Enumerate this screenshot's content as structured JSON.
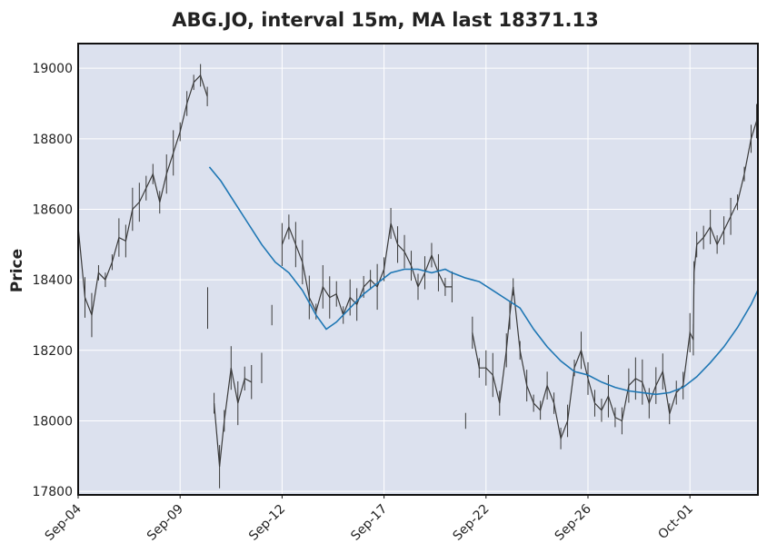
{
  "chart_data": {
    "type": "line",
    "title": "ABG.JO, interval 15m, MA last 18371.13",
    "xlabel": "",
    "ylabel": "Price",
    "ylim": [
      17790,
      19070
    ],
    "yticks": [
      17800,
      18000,
      18200,
      18400,
      18600,
      18800,
      19000
    ],
    "xlim": [
      0,
      100
    ],
    "xticks": [
      {
        "label": "Sep-04",
        "pos": 0
      },
      {
        "label": "Sep-09",
        "pos": 15
      },
      {
        "label": "Sep-12",
        "pos": 30
      },
      {
        "label": "Sep-17",
        "pos": 45
      },
      {
        "label": "Sep-22",
        "pos": 60
      },
      {
        "label": "Sep-26",
        "pos": 75
      },
      {
        "label": "Oct-01",
        "pos": 90
      }
    ],
    "grid": true,
    "background": "#dce1ee",
    "colors": {
      "price": "#3a3a3a",
      "ma": "#1f77b4"
    },
    "series": [
      {
        "name": "",
        "role": "price",
        "points": [
          [
            0,
            18550
          ],
          [
            1,
            18350
          ],
          [
            2,
            18300
          ],
          [
            3,
            18420
          ],
          [
            4,
            18400
          ],
          [
            5,
            18450
          ],
          [
            6,
            18520
          ],
          [
            7,
            18510
          ],
          [
            8,
            18600
          ],
          [
            9,
            18620
          ],
          [
            10,
            18660
          ],
          [
            11,
            18700
          ],
          [
            12,
            18620
          ],
          [
            13,
            18700
          ],
          [
            14,
            18760
          ],
          [
            15,
            18820
          ],
          [
            16,
            18900
          ],
          [
            17,
            18960
          ],
          [
            18,
            18980
          ],
          [
            19,
            18920
          ],
          [
            19.05,
            18320
          ],
          [
            20,
            18050
          ],
          [
            20.8,
            17870
          ],
          [
            21.5,
            18000
          ],
          [
            22.5,
            18150
          ],
          [
            23.5,
            18050
          ],
          [
            24.5,
            18120
          ],
          [
            25.5,
            18110
          ],
          [
            27,
            18150
          ],
          [
            28.5,
            18300
          ],
          [
            30,
            18500
          ],
          [
            31,
            18550
          ],
          [
            32,
            18500
          ],
          [
            33,
            18450
          ],
          [
            34,
            18350
          ],
          [
            35,
            18310
          ],
          [
            36,
            18380
          ],
          [
            37,
            18350
          ],
          [
            38,
            18360
          ],
          [
            39,
            18300
          ],
          [
            40,
            18350
          ],
          [
            41,
            18330
          ],
          [
            42,
            18380
          ],
          [
            43,
            18400
          ],
          [
            44,
            18380
          ],
          [
            45,
            18430
          ],
          [
            46,
            18560
          ],
          [
            47,
            18500
          ],
          [
            48,
            18480
          ],
          [
            49,
            18440
          ],
          [
            50,
            18380
          ],
          [
            51,
            18420
          ],
          [
            52,
            18470
          ],
          [
            53,
            18420
          ],
          [
            54,
            18380
          ],
          [
            55,
            18380
          ],
          [
            57,
            18000
          ],
          [
            58,
            18250
          ],
          [
            59,
            18150
          ],
          [
            60,
            18150
          ],
          [
            61,
            18130
          ],
          [
            62,
            18050
          ],
          [
            63,
            18200
          ],
          [
            63.5,
            18300
          ],
          [
            64,
            18380
          ],
          [
            65,
            18200
          ],
          [
            66,
            18100
          ],
          [
            67,
            18050
          ],
          [
            68,
            18030
          ],
          [
            69,
            18100
          ],
          [
            70,
            18050
          ],
          [
            71,
            17950
          ],
          [
            72,
            18000
          ],
          [
            73,
            18150
          ],
          [
            74,
            18200
          ],
          [
            75,
            18120
          ],
          [
            76,
            18050
          ],
          [
            77,
            18030
          ],
          [
            78,
            18070
          ],
          [
            79,
            18010
          ],
          [
            80,
            18000
          ],
          [
            81,
            18100
          ],
          [
            82,
            18120
          ],
          [
            83,
            18110
          ],
          [
            84,
            18050
          ],
          [
            85,
            18100
          ],
          [
            86,
            18140
          ],
          [
            87,
            18020
          ],
          [
            88,
            18080
          ],
          [
            89,
            18100
          ],
          [
            90,
            18250
          ],
          [
            90.5,
            18230
          ],
          [
            90.6,
            18420
          ],
          [
            91,
            18500
          ],
          [
            92,
            18520
          ],
          [
            93,
            18550
          ],
          [
            94,
            18500
          ],
          [
            95,
            18540
          ],
          [
            96,
            18580
          ],
          [
            97,
            18620
          ],
          [
            98,
            18700
          ],
          [
            99,
            18800
          ],
          [
            99.8,
            18850
          ]
        ]
      },
      {
        "name": "",
        "role": "ma",
        "points": [
          [
            19.3,
            18720
          ],
          [
            21,
            18680
          ],
          [
            23,
            18620
          ],
          [
            25,
            18560
          ],
          [
            27,
            18500
          ],
          [
            29,
            18450
          ],
          [
            31,
            18420
          ],
          [
            33,
            18370
          ],
          [
            35,
            18300
          ],
          [
            36.5,
            18260
          ],
          [
            38,
            18280
          ],
          [
            40,
            18320
          ],
          [
            42,
            18360
          ],
          [
            44,
            18390
          ],
          [
            46,
            18420
          ],
          [
            48,
            18430
          ],
          [
            50,
            18430
          ],
          [
            52,
            18420
          ],
          [
            54,
            18430
          ],
          [
            55,
            18420
          ],
          [
            57,
            18405
          ],
          [
            59,
            18395
          ],
          [
            61,
            18370
          ],
          [
            63,
            18345
          ],
          [
            65,
            18320
          ],
          [
            67,
            18260
          ],
          [
            69,
            18210
          ],
          [
            71,
            18170
          ],
          [
            73,
            18140
          ],
          [
            75,
            18130
          ],
          [
            77,
            18110
          ],
          [
            79,
            18095
          ],
          [
            81,
            18085
          ],
          [
            83,
            18080
          ],
          [
            85,
            18075
          ],
          [
            87,
            18080
          ],
          [
            89,
            18095
          ],
          [
            91,
            18125
          ],
          [
            93,
            18165
          ],
          [
            95,
            18210
          ],
          [
            97,
            18265
          ],
          [
            99,
            18330
          ],
          [
            100,
            18371
          ]
        ]
      }
    ]
  }
}
